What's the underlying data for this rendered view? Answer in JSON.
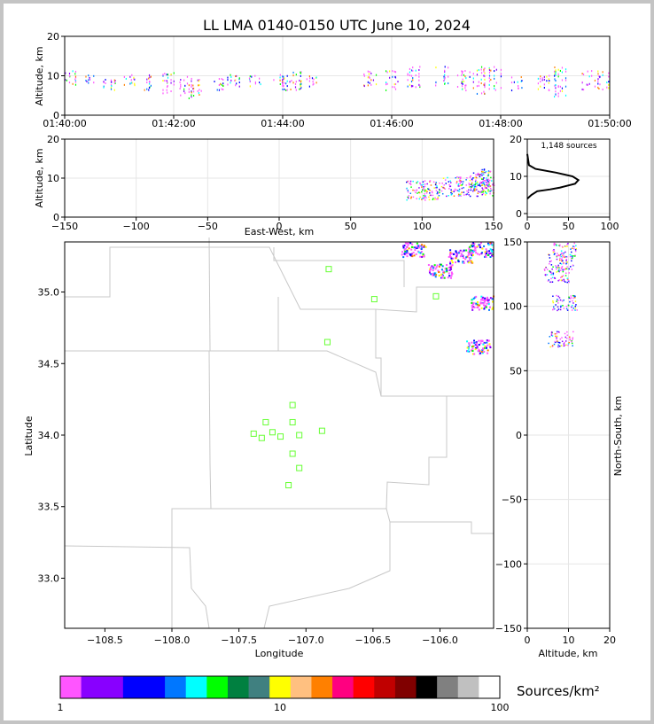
{
  "title": "LL LMA 0140-0150 UTC June 10, 2024",
  "colors": {
    "frame": "#c4c4c4",
    "grid": "#e6e6e6",
    "border": "#c8c8c8",
    "station": "#66ff33",
    "profile": "#000000"
  },
  "chart_data": [
    {
      "id": "time-height",
      "type": "scatter",
      "xlabel": "",
      "ylabel": "Altitude, km",
      "xticks": [
        "01:40:00",
        "01:42:00",
        "01:44:00",
        "01:46:00",
        "01:48:00",
        "01:50:00"
      ],
      "xlim_minutes": [
        0,
        10
      ],
      "ylim": [
        0,
        20
      ],
      "yticks": [
        0,
        10,
        20
      ],
      "source_columns_minutes": [
        {
          "t": 0.1,
          "z": [
            8,
            9,
            10,
            11
          ]
        },
        {
          "t": 0.5,
          "z": [
            8,
            9,
            10
          ]
        },
        {
          "t": 0.8,
          "z": [
            7,
            8,
            9
          ]
        },
        {
          "t": 1.2,
          "z": [
            8,
            9,
            10
          ]
        },
        {
          "t": 1.5,
          "z": [
            7,
            8,
            9,
            10
          ]
        },
        {
          "t": 1.9,
          "z": [
            6,
            7,
            8,
            9,
            10,
            11
          ]
        },
        {
          "t": 2.2,
          "z": [
            5,
            6,
            7,
            8,
            9,
            10
          ]
        },
        {
          "t": 2.4,
          "z": [
            5,
            6,
            7,
            8,
            9
          ]
        },
        {
          "t": 2.8,
          "z": [
            7,
            8,
            9
          ]
        },
        {
          "t": 3.1,
          "z": [
            8,
            9,
            10
          ]
        },
        {
          "t": 3.5,
          "z": [
            8,
            9,
            10
          ]
        },
        {
          "t": 3.9,
          "z": [
            8,
            9,
            10
          ]
        },
        {
          "t": 4.1,
          "z": [
            7,
            8,
            9,
            10
          ]
        },
        {
          "t": 4.3,
          "z": [
            7,
            8,
            9,
            10,
            11
          ]
        },
        {
          "t": 4.5,
          "z": [
            8,
            9,
            10
          ]
        },
        {
          "t": 5.6,
          "z": [
            8,
            9,
            10,
            11
          ]
        },
        {
          "t": 6.0,
          "z": [
            7,
            8,
            9,
            10,
            11
          ]
        },
        {
          "t": 6.4,
          "z": [
            7,
            8,
            9,
            10,
            11,
            12
          ]
        },
        {
          "t": 6.9,
          "z": [
            8,
            9,
            10,
            11,
            12
          ]
        },
        {
          "t": 7.3,
          "z": [
            7,
            8,
            9,
            10,
            11
          ]
        },
        {
          "t": 7.6,
          "z": [
            6,
            7,
            8,
            9,
            10,
            11,
            12
          ]
        },
        {
          "t": 7.9,
          "z": [
            7,
            8,
            9,
            10,
            11,
            12
          ]
        },
        {
          "t": 8.3,
          "z": [
            7,
            8,
            9,
            10
          ]
        },
        {
          "t": 8.8,
          "z": [
            7,
            8,
            9,
            10
          ]
        },
        {
          "t": 9.1,
          "z": [
            5,
            6,
            7,
            8,
            9,
            10,
            11,
            12
          ]
        },
        {
          "t": 9.6,
          "z": [
            7,
            8,
            9,
            10,
            11
          ]
        },
        {
          "t": 9.9,
          "z": [
            7,
            8,
            9,
            10,
            11
          ]
        }
      ]
    },
    {
      "id": "east-west-height",
      "type": "scatter",
      "xlabel": "East-West, km",
      "ylabel": "Altitude, km",
      "xlim": [
        -150,
        150
      ],
      "xticks": [
        -150,
        -100,
        -50,
        0,
        50,
        100,
        150
      ],
      "ylim": [
        0,
        20
      ],
      "yticks": [
        0,
        10,
        20
      ],
      "source_clusters": [
        {
          "x": 95,
          "z": 7
        },
        {
          "x": 105,
          "z": 7
        },
        {
          "x": 120,
          "z": 8
        },
        {
          "x": 132,
          "z": 8
        },
        {
          "x": 140,
          "z": 9
        },
        {
          "x": 146,
          "z": 10
        },
        {
          "x": 148,
          "z": 8
        }
      ]
    },
    {
      "id": "height-histogram",
      "type": "line",
      "annotation": "1,148 sources",
      "xlim": [
        0,
        100
      ],
      "xticks": [
        0,
        50,
        100
      ],
      "ylim": [
        0,
        20
      ],
      "yticks": [
        0,
        10,
        20
      ],
      "profile": [
        {
          "x": 0,
          "z": 4
        },
        {
          "x": 5,
          "z": 5
        },
        {
          "x": 12,
          "z": 6
        },
        {
          "x": 28,
          "z": 6.5
        },
        {
          "x": 40,
          "z": 7
        },
        {
          "x": 58,
          "z": 8
        },
        {
          "x": 62,
          "z": 9
        },
        {
          "x": 55,
          "z": 10
        },
        {
          "x": 35,
          "z": 11
        },
        {
          "x": 10,
          "z": 12
        },
        {
          "x": 2,
          "z": 13
        },
        {
          "x": 0,
          "z": 16
        }
      ]
    },
    {
      "id": "plan-view",
      "type": "scatter",
      "xlabel": "Longitude",
      "ylabel": "Latitude",
      "xlim": [
        -108.8,
        -105.6
      ],
      "xticks": [
        -108.5,
        -108.0,
        -107.5,
        -107.0,
        -106.5,
        -106.0
      ],
      "ylim": [
        32.65,
        35.35
      ],
      "yticks": [
        33.0,
        33.5,
        34.0,
        34.5,
        35.0
      ],
      "stations": [
        {
          "lon": -106.83,
          "lat": 35.16
        },
        {
          "lon": -106.49,
          "lat": 34.95
        },
        {
          "lon": -106.03,
          "lat": 34.97
        },
        {
          "lon": -106.84,
          "lat": 34.65
        },
        {
          "lon": -107.1,
          "lat": 34.21
        },
        {
          "lon": -107.3,
          "lat": 34.09
        },
        {
          "lon": -107.1,
          "lat": 34.09
        },
        {
          "lon": -107.39,
          "lat": 34.01
        },
        {
          "lon": -107.25,
          "lat": 34.02
        },
        {
          "lon": -107.33,
          "lat": 33.98
        },
        {
          "lon": -107.19,
          "lat": 33.99
        },
        {
          "lon": -107.05,
          "lat": 34.0
        },
        {
          "lon": -106.88,
          "lat": 34.03
        },
        {
          "lon": -107.1,
          "lat": 33.87
        },
        {
          "lon": -107.05,
          "lat": 33.77
        },
        {
          "lon": -107.13,
          "lat": 33.65
        }
      ],
      "source_clusters": [
        {
          "lon": -105.85,
          "lat": 35.25
        },
        {
          "lon": -106.0,
          "lat": 35.15
        },
        {
          "lon": -106.2,
          "lat": 35.3
        },
        {
          "lon": -105.7,
          "lat": 35.3
        },
        {
          "lon": -105.68,
          "lat": 34.93
        },
        {
          "lon": -105.72,
          "lat": 34.62
        }
      ]
    },
    {
      "id": "north-south-height",
      "type": "scatter",
      "xlabel": "Altitude, km",
      "ylabel": "North-South, km",
      "xlim": [
        0,
        20
      ],
      "xticks": [
        0,
        10,
        20
      ],
      "ylim": [
        -150,
        150
      ],
      "yticks": [
        -150,
        -100,
        -50,
        0,
        50,
        100,
        150
      ],
      "source_clusters": [
        {
          "z": 9,
          "y": 145
        },
        {
          "z": 8,
          "y": 135
        },
        {
          "z": 7,
          "y": 125
        },
        {
          "z": 9,
          "y": 103
        },
        {
          "z": 8,
          "y": 75
        }
      ]
    }
  ],
  "colorbar": {
    "label": "Sources/km²",
    "tick_labels": [
      "1",
      "10",
      "100"
    ],
    "colors": [
      "#ff55ff",
      "#8800ff",
      "#8800ff",
      "#0000ff",
      "#0000ff",
      "#0077ff",
      "#00ffff",
      "#00ff00",
      "#008040",
      "#408080",
      "#ffff00",
      "#ffc080",
      "#ff8000",
      "#ff0080",
      "#ff0000",
      "#c00000",
      "#800000",
      "#000000",
      "#808080",
      "#c0c0c0",
      "#ffffff"
    ]
  }
}
